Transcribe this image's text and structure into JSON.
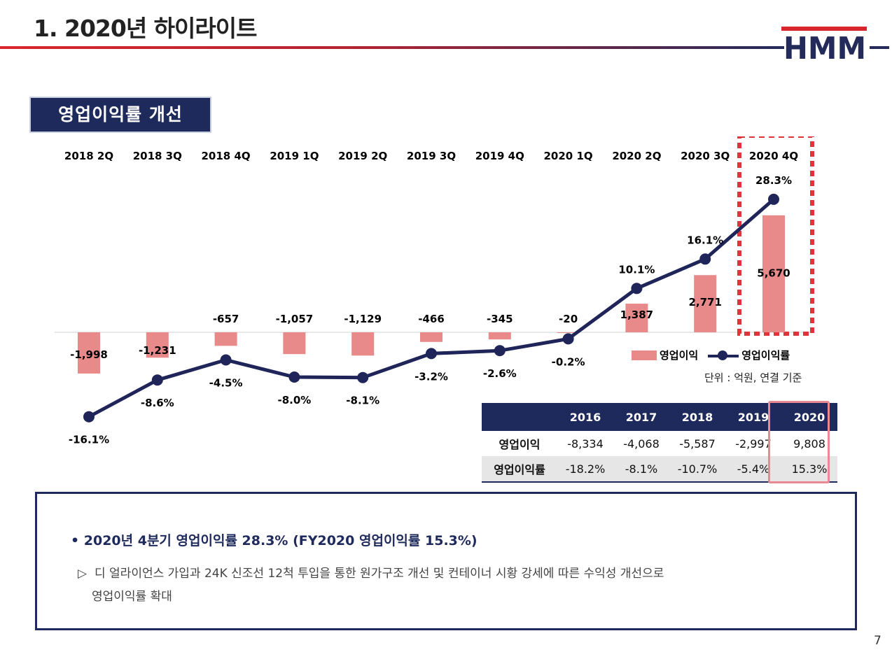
{
  "header": {
    "title": "1. 2020년 하이라이트",
    "logo_text": "HMM"
  },
  "section": {
    "title": "영업이익률 개선"
  },
  "chart_data": {
    "type": "bar",
    "categories": [
      "2018 2Q",
      "2018 3Q",
      "2018 4Q",
      "2019 1Q",
      "2019 2Q",
      "2019 3Q",
      "2019 4Q",
      "2020 1Q",
      "2020 2Q",
      "2020 3Q",
      "2020 4Q"
    ],
    "series": [
      {
        "name": "영업이익",
        "type": "bar",
        "color": "#e8898a",
        "values": [
          -1998,
          -1231,
          -657,
          -1057,
          -1129,
          -466,
          -345,
          -20,
          1387,
          2771,
          5670
        ],
        "labels": [
          "-1,998",
          "-1,231",
          "-657",
          "-1,057",
          "-1,129",
          "-466",
          "-345",
          "-20",
          "1,387",
          "2,771",
          "5,670"
        ]
      },
      {
        "name": "영업이익률",
        "type": "line",
        "color": "#1f2559",
        "values": [
          -16.1,
          -8.6,
          -4.5,
          -8.0,
          -8.1,
          -3.2,
          -2.6,
          -0.2,
          10.1,
          16.1,
          28.3
        ],
        "labels": [
          "-16.1%",
          "-8.6%",
          "-4.5%",
          "-8.0%",
          "-8.1%",
          "-3.2%",
          "-2.6%",
          "-0.2%",
          "10.1%",
          "16.1%",
          "28.3%"
        ]
      }
    ],
    "highlight_category": "2020 4Q",
    "legend_position": "bottom-right",
    "grid": false,
    "unit_note": "단위 : 억원, 연결 기준"
  },
  "summary_table": {
    "headers": [
      "2016",
      "2017",
      "2018",
      "2019",
      "2020"
    ],
    "rows": [
      {
        "label": "영업이익",
        "values": [
          "-8,334",
          "-4,068",
          "-5,587",
          "-2,997",
          "9,808"
        ]
      },
      {
        "label": "영업이익률",
        "values": [
          "-18.2%",
          "-8.1%",
          "-10.7%",
          "-5.4%",
          "15.3%"
        ]
      }
    ],
    "highlight_column": "2020"
  },
  "info": {
    "bullet": "• 2020년 4분기 영업이익률 28.3% (FY2020 영업이익률 15.3%)",
    "triangle": "▷",
    "detail_line1": "디 얼라이언스 가입과 24K 신조선 12척 투입을 통한 원가구조 개선 및 컨테이너 시황 강세에 따른 수익성 개선으로",
    "detail_line2": "영업이익률 확대"
  },
  "page_number": "7"
}
